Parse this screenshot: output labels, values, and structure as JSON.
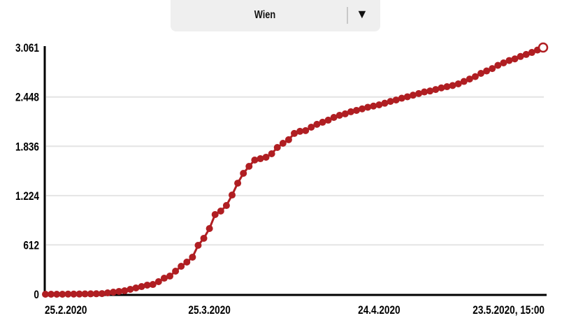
{
  "dropdown": {
    "selected": "Wien",
    "icon": "triangle-down-icon"
  },
  "chart_data": {
    "type": "line",
    "title": "",
    "xlabel": "",
    "ylabel": "",
    "ylim": [
      0,
      3061
    ],
    "y_ticks": [
      0,
      612,
      1224,
      1836,
      2448,
      3061
    ],
    "y_tick_labels": [
      "0",
      "612",
      "1.224",
      "1.836",
      "2.448",
      "3.061"
    ],
    "x_tick_labels": [
      {
        "index": 0,
        "label": "25.2.2020"
      },
      {
        "index": 29,
        "label": "25.3.2020"
      },
      {
        "index": 59,
        "label": "24.4.2020"
      },
      {
        "index": 88,
        "label": "23.5.2020, 15:00"
      }
    ],
    "grid": "horizontal",
    "color": "#b01e22",
    "x": [
      "25.2.",
      "26.2.",
      "27.2.",
      "28.2.",
      "29.2.",
      "1.3.",
      "2.3.",
      "3.3.",
      "4.3.",
      "5.3.",
      "6.3.",
      "7.3.",
      "8.3.",
      "9.3.",
      "10.3.",
      "11.3.",
      "12.3.",
      "13.3.",
      "14.3.",
      "15.3.",
      "16.3.",
      "17.3.",
      "18.3.",
      "19.3.",
      "20.3.",
      "21.3.",
      "22.3.",
      "23.3.",
      "24.3.",
      "25.3.",
      "26.3.",
      "27.3.",
      "28.3.",
      "29.3.",
      "30.3.",
      "31.3.",
      "1.4.",
      "2.4.",
      "3.4.",
      "4.4.",
      "5.4.",
      "6.4.",
      "7.4.",
      "8.4.",
      "9.4.",
      "10.4.",
      "11.4.",
      "12.4.",
      "13.4.",
      "14.4.",
      "15.4.",
      "16.4.",
      "17.4.",
      "18.4.",
      "19.4.",
      "20.4.",
      "21.4.",
      "22.4.",
      "23.4.",
      "24.4.",
      "25.4.",
      "26.4.",
      "27.4.",
      "28.4.",
      "29.4.",
      "30.4.",
      "1.5.",
      "2.5.",
      "3.5.",
      "4.5.",
      "5.5.",
      "6.5.",
      "7.5.",
      "8.5.",
      "9.5.",
      "10.5.",
      "11.5.",
      "12.5.",
      "13.5.",
      "14.5.",
      "15.5.",
      "16.5.",
      "17.5.",
      "18.5.",
      "19.5.",
      "20.5.",
      "21.5.",
      "22.5.",
      "23.5."
    ],
    "values": [
      0,
      0,
      0,
      0,
      2,
      2,
      3,
      4,
      5,
      6,
      8,
      17,
      26,
      35,
      43,
      61,
      78,
      95,
      113,
      121,
      156,
      199,
      225,
      286,
      347,
      399,
      460,
      607,
      694,
      815,
      989,
      1032,
      1101,
      1231,
      1378,
      1500,
      1587,
      1665,
      1682,
      1700,
      1743,
      1821,
      1873,
      1917,
      1995,
      2021,
      2030,
      2073,
      2108,
      2134,
      2160,
      2194,
      2220,
      2238,
      2264,
      2281,
      2300,
      2320,
      2335,
      2350,
      2370,
      2392,
      2410,
      2432,
      2450,
      2470,
      2490,
      2510,
      2522,
      2540,
      2560,
      2575,
      2590,
      2610,
      2640,
      2670,
      2700,
      2740,
      2770,
      2800,
      2840,
      2870,
      2900,
      2920,
      2950,
      2975,
      3000,
      3030,
      3061
    ]
  }
}
